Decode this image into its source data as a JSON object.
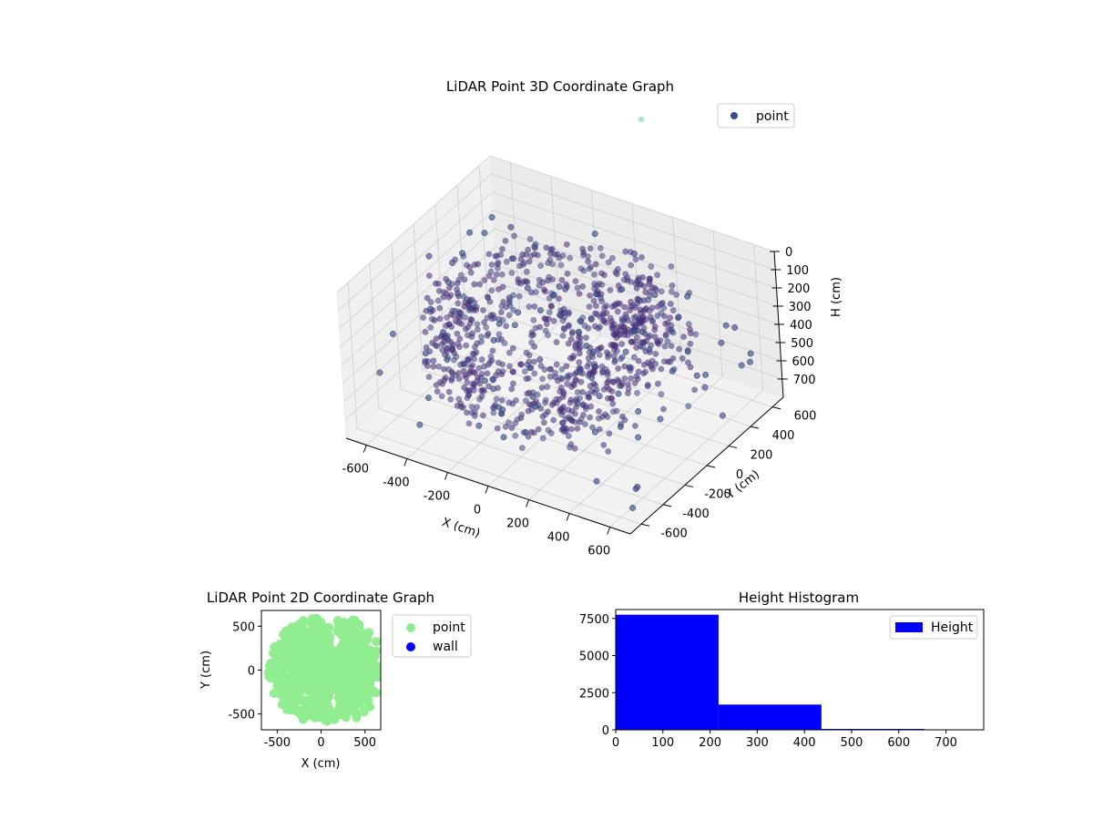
{
  "chart_data": [
    {
      "type": "scatter",
      "projection": "3d",
      "title": "LiDAR Point 3D Coordinate Graph",
      "xlabel": "X (cm)",
      "ylabel": "Y (cm)",
      "zlabel": "H (cm)",
      "xlim": [
        -700,
        700
      ],
      "ylim": [
        -700,
        700
      ],
      "zlim": [
        800,
        0
      ],
      "zaxis_inverted": true,
      "x_ticks": [
        -600,
        -400,
        -200,
        0,
        200,
        400,
        600
      ],
      "y_ticks": [
        -600,
        -400,
        -200,
        0,
        200,
        400,
        600
      ],
      "z_ticks": [
        0,
        100,
        200,
        300,
        400,
        500,
        600,
        700
      ],
      "legend": {
        "placement": "top-right",
        "entries": [
          "point"
        ]
      },
      "series": [
        {
          "name": "point",
          "colormap": "viridis",
          "color": "#3b4b8a"
        }
      ],
      "grid": true
    },
    {
      "type": "scatter",
      "title": "LiDAR Point 2D Coordinate Graph",
      "xlabel": "X (cm)",
      "ylabel": "Y (cm)",
      "xlim": [
        -680,
        680
      ],
      "ylim": [
        -680,
        680
      ],
      "x_ticks": [
        -500,
        0,
        500
      ],
      "y_ticks": [
        -500,
        0,
        500
      ],
      "legend": {
        "placement": "outside-right",
        "entries": [
          "point",
          "wall"
        ]
      },
      "series": [
        {
          "name": "point",
          "color": "#90ee90"
        },
        {
          "name": "wall",
          "color": "#0000ff"
        }
      ]
    },
    {
      "type": "bar",
      "subtype": "histogram",
      "title": "Height Histogram",
      "xlabel": "",
      "ylabel": "",
      "bin_edges": [
        0,
        218,
        436,
        654
      ],
      "counts": [
        7750,
        1700,
        60
      ],
      "xlim": [
        0,
        780
      ],
      "ylim": [
        0,
        8100
      ],
      "x_ticks": [
        0,
        100,
        200,
        300,
        400,
        500,
        600,
        700
      ],
      "y_ticks": [
        0,
        2500,
        5000,
        7500
      ],
      "legend": {
        "placement": "top-right",
        "entries": [
          "Height"
        ]
      },
      "series": [
        {
          "name": "Height",
          "color": "#0000ff"
        }
      ]
    }
  ]
}
